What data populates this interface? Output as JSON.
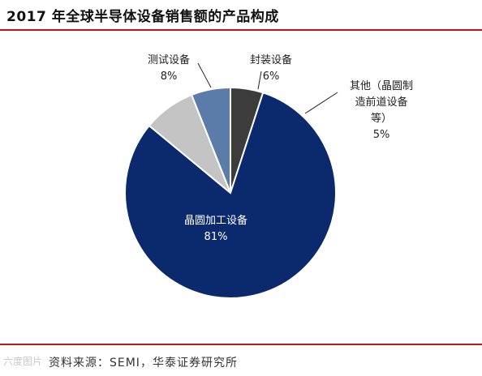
{
  "header": {
    "title": "2017 年全球半导体设备销售额的产品构成"
  },
  "footer": {
    "source": "资料来源：SEMI，华泰证券研究所",
    "watermark": "六度图片"
  },
  "colors": {
    "rule": "#c0141a",
    "slice_wafer": "#0b2a6e",
    "slice_test": "#c4c4c4",
    "slice_packaging": "#5b7ba8",
    "slice_other": "#3c3c3c"
  },
  "chart_data": {
    "type": "pie",
    "start_angle_deg": 0,
    "direction": "clockwise",
    "slices": [
      {
        "label": "其他（晶圆制造前道设备等）",
        "label_lines": [
          "其他（晶圆制",
          "造前道设备",
          "等）"
        ],
        "value": 5,
        "value_label": "5%",
        "color": "#3c3c3c"
      },
      {
        "label": "晶圆加工设备",
        "label_lines": [
          "晶圆加工设备"
        ],
        "value": 81,
        "value_label": "81%",
        "color": "#0b2a6e"
      },
      {
        "label": "测试设备",
        "label_lines": [
          "测试设备"
        ],
        "value": 8,
        "value_label": "8%",
        "color": "#c4c4c4"
      },
      {
        "label": "封装设备",
        "label_lines": [
          "封装设备"
        ],
        "value": 6,
        "value_label": "6%",
        "color": "#5b7ba8"
      }
    ]
  }
}
